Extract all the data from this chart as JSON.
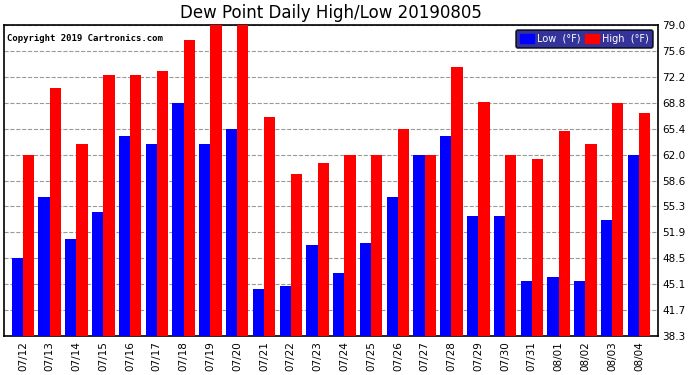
{
  "title": "Dew Point Daily High/Low 20190805",
  "copyright": "Copyright 2019 Cartronics.com",
  "dates": [
    "07/12",
    "07/13",
    "07/14",
    "07/15",
    "07/16",
    "07/17",
    "07/18",
    "07/19",
    "07/20",
    "07/21",
    "07/22",
    "07/23",
    "07/24",
    "07/25",
    "07/26",
    "07/27",
    "07/28",
    "07/29",
    "07/30",
    "07/31",
    "08/01",
    "08/02",
    "08/03",
    "08/04"
  ],
  "low_values": [
    48.5,
    56.5,
    51.0,
    54.5,
    64.5,
    63.5,
    68.8,
    63.5,
    65.4,
    44.5,
    44.8,
    50.2,
    46.5,
    50.5,
    56.5,
    62.0,
    64.5,
    54.0,
    54.0,
    45.5,
    46.0,
    45.5,
    53.5,
    62.0
  ],
  "high_values": [
    62.0,
    70.8,
    63.5,
    72.5,
    72.5,
    73.0,
    77.0,
    79.0,
    79.0,
    67.0,
    59.5,
    61.0,
    62.0,
    62.0,
    65.4,
    62.0,
    73.5,
    69.0,
    62.0,
    61.5,
    65.2,
    63.5,
    68.8,
    67.5
  ],
  "ymin": 38.3,
  "ymax": 79.0,
  "yticks": [
    38.3,
    41.7,
    45.1,
    48.5,
    51.9,
    55.3,
    58.6,
    62.0,
    65.4,
    68.8,
    72.2,
    75.6,
    79.0
  ],
  "low_color": "#0000FF",
  "high_color": "#FF0000",
  "bg_color": "#FFFFFF",
  "grid_color": "#999999",
  "title_fontsize": 12,
  "tick_fontsize": 7.5,
  "legend_low_label": "Low  (°F)",
  "legend_high_label": "High  (°F)"
}
